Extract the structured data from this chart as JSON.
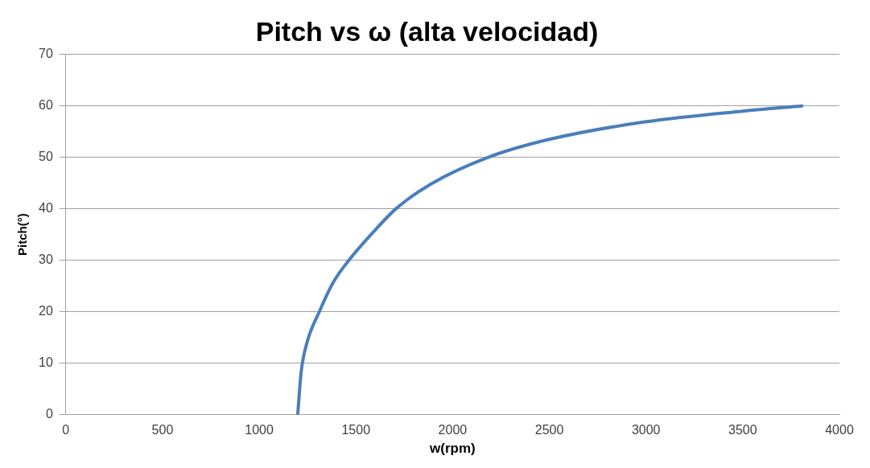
{
  "chart_data": {
    "type": "line",
    "title": "Pitch vs ω (alta velocidad)",
    "xlabel": "w(rpm)",
    "ylabel": "Pitch(°)",
    "x": [
      1199,
      1217,
      1248,
      1311,
      1383,
      1464,
      1581,
      1707,
      1887,
      2176,
      2500,
      2995,
      3500,
      3806
    ],
    "series": [
      {
        "color": "#4a7ebb",
        "values": [
          0,
          8.3,
          14.1,
          20,
          25.7,
          30,
          35.1,
          40,
          44.8,
          49.9,
          53.5,
          56.9,
          59,
          60
        ]
      }
    ],
    "xlim": [
      0,
      4000
    ],
    "xticks": [
      0,
      500,
      1000,
      1500,
      2000,
      2500,
      3000,
      3500,
      4000
    ],
    "ylim": [
      0,
      70
    ],
    "yticks": [
      0,
      10,
      20,
      30,
      40,
      50,
      60,
      70
    ],
    "grid": "y",
    "legend": false,
    "marker": "none",
    "line_style": "solid"
  }
}
